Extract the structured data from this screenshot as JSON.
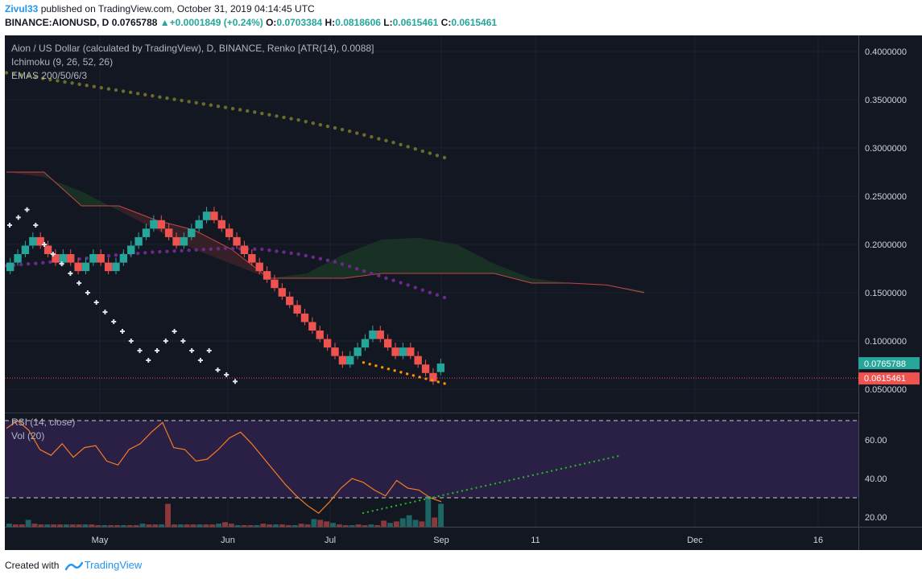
{
  "header": {
    "user": "Zivul33",
    "published_text": "published on TradingView.com, October 31, 2019 04:14:45 UTC",
    "symbol": "BINANCE:AIONUSD, D",
    "price": "0.0765788",
    "change": "+0.0001849 (+0.24%)",
    "o_label": "O:",
    "o_value": "0.0703384",
    "h_label": "H:",
    "h_value": "0.0818606",
    "l_label": "L:",
    "l_value": "0.0615461",
    "c_label": "C:",
    "c_value": "0.0615461"
  },
  "legend": {
    "line1": "Aion / US Dollar (calculated by TradingView), D, BINANCE, Renko [ATR(14), 0.0088]",
    "line2": "Ichimoku (9, 26, 52, 26)",
    "line3": "EMAS 200/50/6/3"
  },
  "rsi_legend": {
    "line1": "RSI (14, close)",
    "line2": "Vol (20)"
  },
  "footer": {
    "created_with": "Created with",
    "brand": "TradingView"
  },
  "colors": {
    "background": "#131722",
    "up": "#26a69a",
    "down": "#ef5350",
    "cloud_bear": "#3a2128",
    "cloud_bull": "#1b3326",
    "ema200": "#6b6b2a",
    "ema50": "#6a2a8a",
    "rsi_line": "#f57c1f",
    "rsi_band": "#2a2046",
    "green_trend": "#1ec41e",
    "orange_trend": "#ff9800"
  },
  "chart_data": [
    {
      "type": "renko",
      "title": "Aion / US Dollar (calculated by TradingView), D, BINANCE, Renko [ATR(14), 0.0088]",
      "box_size": 0.0088,
      "ylim": [
        0.025,
        0.415
      ],
      "y_ticks": [
        "0.4000000",
        "0.3500000",
        "0.3000000",
        "0.2500000",
        "0.2000000",
        "0.1500000",
        "0.1000000",
        "0.0500000"
      ],
      "x_ticks": [
        "May",
        "Jun",
        "Jul",
        "Sep",
        "11",
        "Dec",
        "16"
      ],
      "last_price_label": "0.0765788",
      "close_price_label": "0.0615461",
      "bricks": [
        {
          "dir": "up",
          "close": 0.1812
        },
        {
          "dir": "up",
          "close": 0.19
        },
        {
          "dir": "up",
          "close": 0.1988
        },
        {
          "dir": "up",
          "close": 0.2076
        },
        {
          "dir": "down",
          "close": 0.1988
        },
        {
          "dir": "down",
          "close": 0.19
        },
        {
          "dir": "down",
          "close": 0.1812
        },
        {
          "dir": "up",
          "close": 0.19
        },
        {
          "dir": "down",
          "close": 0.1812
        },
        {
          "dir": "down",
          "close": 0.1724
        },
        {
          "dir": "up",
          "close": 0.1812
        },
        {
          "dir": "up",
          "close": 0.19
        },
        {
          "dir": "down",
          "close": 0.1812
        },
        {
          "dir": "down",
          "close": 0.1724
        },
        {
          "dir": "up",
          "close": 0.1812
        },
        {
          "dir": "up",
          "close": 0.19
        },
        {
          "dir": "up",
          "close": 0.1988
        },
        {
          "dir": "up",
          "close": 0.2076
        },
        {
          "dir": "up",
          "close": 0.2164
        },
        {
          "dir": "up",
          "close": 0.2252
        },
        {
          "dir": "down",
          "close": 0.2164
        },
        {
          "dir": "down",
          "close": 0.2076
        },
        {
          "dir": "down",
          "close": 0.1988
        },
        {
          "dir": "up",
          "close": 0.2076
        },
        {
          "dir": "up",
          "close": 0.2164
        },
        {
          "dir": "up",
          "close": 0.2252
        },
        {
          "dir": "up",
          "close": 0.234
        },
        {
          "dir": "down",
          "close": 0.2252
        },
        {
          "dir": "down",
          "close": 0.2164
        },
        {
          "dir": "down",
          "close": 0.2076
        },
        {
          "dir": "down",
          "close": 0.1988
        },
        {
          "dir": "down",
          "close": 0.19
        },
        {
          "dir": "down",
          "close": 0.1812
        },
        {
          "dir": "down",
          "close": 0.1724
        },
        {
          "dir": "down",
          "close": 0.1636
        },
        {
          "dir": "down",
          "close": 0.1548
        },
        {
          "dir": "down",
          "close": 0.146
        },
        {
          "dir": "down",
          "close": 0.1372
        },
        {
          "dir": "down",
          "close": 0.1284
        },
        {
          "dir": "down",
          "close": 0.1196
        },
        {
          "dir": "down",
          "close": 0.1108
        },
        {
          "dir": "down",
          "close": 0.102
        },
        {
          "dir": "down",
          "close": 0.0932
        },
        {
          "dir": "down",
          "close": 0.0844
        },
        {
          "dir": "down",
          "close": 0.0756
        },
        {
          "dir": "up",
          "close": 0.0844
        },
        {
          "dir": "up",
          "close": 0.0932
        },
        {
          "dir": "up",
          "close": 0.102
        },
        {
          "dir": "up",
          "close": 0.1108
        },
        {
          "dir": "down",
          "close": 0.102
        },
        {
          "dir": "down",
          "close": 0.0932
        },
        {
          "dir": "down",
          "close": 0.0844
        },
        {
          "dir": "up",
          "close": 0.0932
        },
        {
          "dir": "down",
          "close": 0.0844
        },
        {
          "dir": "down",
          "close": 0.0756
        },
        {
          "dir": "down",
          "close": 0.0668
        },
        {
          "dir": "down",
          "close": 0.058
        },
        {
          "dir": "up",
          "close": 0.0766
        }
      ],
      "ema200": [
        0.378,
        0.37,
        0.362,
        0.354,
        0.346,
        0.338,
        0.329,
        0.318,
        0.305,
        0.29
      ],
      "ema50": [
        0.178,
        0.181,
        0.185,
        0.189,
        0.192,
        0.194,
        0.196,
        0.195,
        0.19,
        0.182,
        0.17,
        0.158,
        0.145
      ],
      "ichimoku_cloud": {
        "span_a": [
          0.275,
          0.27,
          0.255,
          0.235,
          0.215,
          0.195,
          0.18,
          0.165,
          0.17,
          0.19,
          0.205,
          0.207,
          0.2,
          0.18,
          0.165,
          0.16,
          0.158,
          0.152
        ],
        "span_b": [
          0.275,
          0.275,
          0.24,
          0.24,
          0.225,
          0.215,
          0.195,
          0.165,
          0.165,
          0.165,
          0.17,
          0.17,
          0.17,
          0.17,
          0.16,
          0.16,
          0.158,
          0.15
        ]
      },
      "parabolic_sar": [
        0.22,
        0.228,
        0.236,
        0.22,
        0.2,
        0.19,
        0.18,
        0.17,
        0.16,
        0.15,
        0.14,
        0.13,
        0.12,
        0.11,
        0.1,
        0.09,
        0.08,
        0.09,
        0.1,
        0.11,
        0.1,
        0.09,
        0.08,
        0.09,
        0.07,
        0.065,
        0.058
      ],
      "support_trend": {
        "from": 0.078,
        "to": 0.055
      }
    },
    {
      "type": "line",
      "title": "RSI (14, close)",
      "ylim": [
        15,
        72
      ],
      "y_ticks": [
        "60.00",
        "40.00",
        "20.00"
      ],
      "band": [
        30,
        70
      ],
      "rsi": [
        66,
        70,
        65,
        55,
        52,
        58,
        51,
        56,
        57,
        49,
        47,
        55,
        58,
        64,
        69,
        56,
        55,
        49,
        50,
        55,
        61,
        64,
        58,
        51,
        44,
        37,
        31,
        26,
        22,
        28,
        35,
        40,
        38,
        34,
        31,
        39,
        35,
        34,
        30,
        28
      ],
      "trendline": {
        "from": 22,
        "to": 52
      }
    },
    {
      "type": "bar",
      "title": "Vol (20)",
      "volume": [
        4,
        3,
        3,
        9,
        4,
        3,
        3,
        3,
        3,
        3,
        3,
        3,
        3,
        3,
        2,
        2,
        2,
        2,
        2,
        2,
        2,
        4,
        3,
        3,
        3,
        30,
        3,
        3,
        3,
        3,
        3,
        3,
        3,
        4,
        6,
        4,
        2,
        2,
        2,
        2,
        4,
        3,
        3,
        3,
        2,
        2,
        4,
        3,
        10,
        9,
        7,
        5,
        3,
        2,
        2,
        3,
        2,
        3,
        2,
        8,
        5,
        7,
        11,
        15,
        9,
        7,
        40,
        12,
        30
      ]
    }
  ]
}
